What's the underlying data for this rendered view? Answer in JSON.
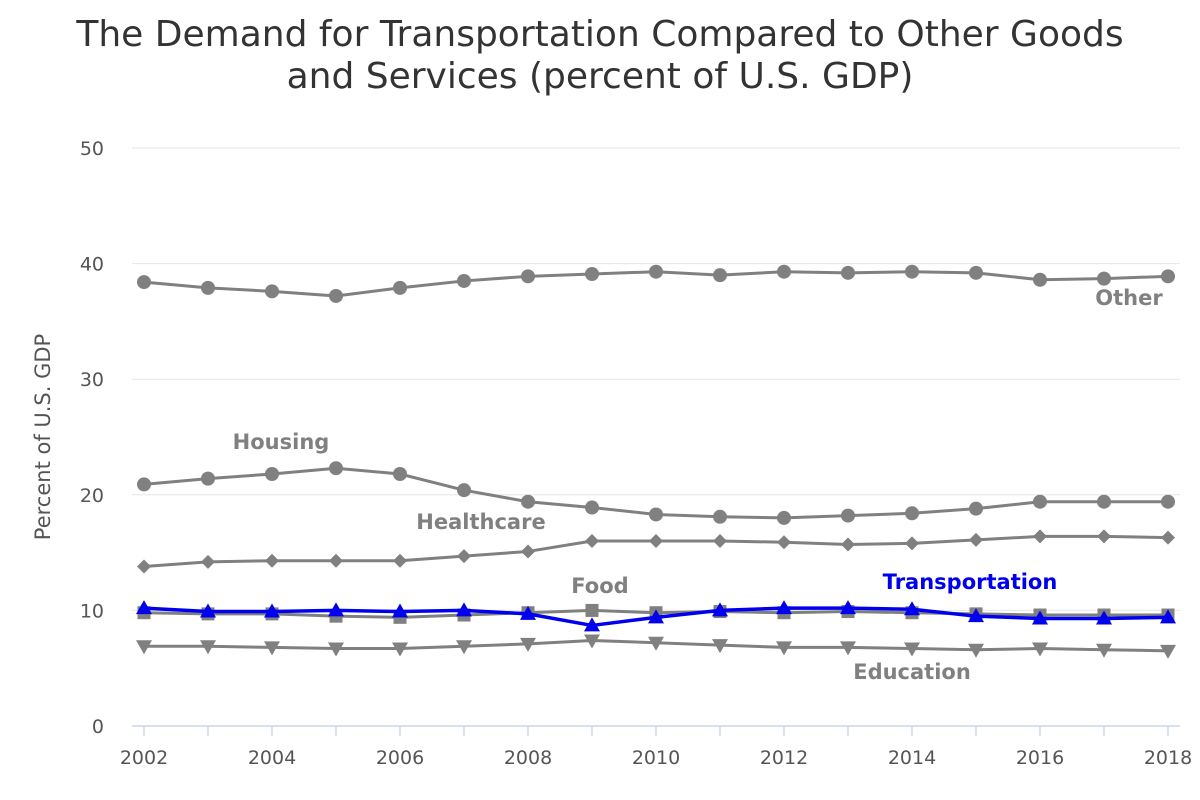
{
  "chart_data": {
    "type": "line",
    "title_lines": [
      "The Demand for Transportation Compared to Other Goods",
      "and Services (percent of U.S. GDP)"
    ],
    "xlabel": "",
    "ylabel": "Percent of U.S. GDP",
    "ylim": [
      0,
      50
    ],
    "yticks": [
      0,
      10,
      20,
      30,
      40,
      50
    ],
    "xticks": [
      2002,
      2004,
      2006,
      2008,
      2010,
      2012,
      2014,
      2016,
      2018
    ],
    "x": [
      2002,
      2003,
      2004,
      2005,
      2006,
      2007,
      2008,
      2009,
      2010,
      2011,
      2012,
      2013,
      2014,
      2015,
      2016,
      2017,
      2018
    ],
    "grid": "horizontal",
    "legend": "inline labels",
    "series": [
      {
        "name": "Other",
        "label": "Other",
        "color": "#808080",
        "marker": "circle",
        "values": [
          38.4,
          37.9,
          37.6,
          37.2,
          37.9,
          38.5,
          38.9,
          39.1,
          39.3,
          39.0,
          39.3,
          39.2,
          39.3,
          39.2,
          38.6,
          38.7,
          38.9
        ]
      },
      {
        "name": "Housing",
        "label": "Housing",
        "color": "#808080",
        "marker": "circle",
        "values": [
          20.9,
          21.4,
          21.8,
          22.3,
          21.8,
          20.4,
          19.4,
          18.9,
          18.3,
          18.1,
          18.0,
          18.2,
          18.4,
          18.8,
          19.4,
          19.4,
          19.4
        ]
      },
      {
        "name": "Healthcare",
        "label": "Healthcare",
        "color": "#808080",
        "marker": "diamond",
        "values": [
          13.8,
          14.2,
          14.3,
          14.3,
          14.3,
          14.7,
          15.1,
          16.0,
          16.0,
          16.0,
          15.9,
          15.7,
          15.8,
          16.1,
          16.4,
          16.4,
          16.3
        ]
      },
      {
        "name": "Food",
        "label": "Food",
        "color": "#808080",
        "marker": "square",
        "values": [
          9.8,
          9.7,
          9.7,
          9.5,
          9.4,
          9.6,
          9.8,
          10.0,
          9.8,
          9.9,
          9.8,
          9.9,
          9.8,
          9.7,
          9.6,
          9.6,
          9.6
        ]
      },
      {
        "name": "Education",
        "label": "Education",
        "color": "#808080",
        "marker": "triangle-down",
        "values": [
          6.9,
          6.9,
          6.8,
          6.7,
          6.7,
          6.9,
          7.1,
          7.4,
          7.2,
          7.0,
          6.8,
          6.8,
          6.7,
          6.6,
          6.7,
          6.6,
          6.5
        ]
      },
      {
        "name": "Transportation",
        "label": "Transportation",
        "color": "#0000ee",
        "marker": "triangle-up",
        "values": [
          10.2,
          9.9,
          9.9,
          10.0,
          9.9,
          10.0,
          9.7,
          8.7,
          9.4,
          10.0,
          10.2,
          10.2,
          10.1,
          9.5,
          9.3,
          9.3,
          9.4
        ]
      }
    ]
  }
}
